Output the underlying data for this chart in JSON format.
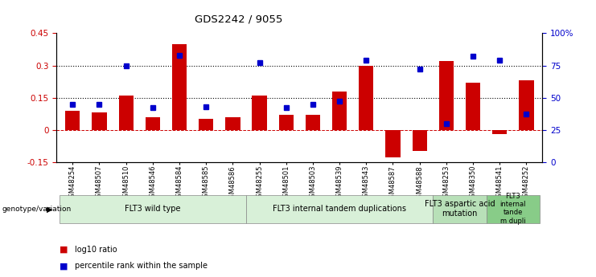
{
  "title": "GDS2242 / 9055",
  "samples": [
    "GSM48254",
    "GSM48507",
    "GSM48510",
    "GSM48546",
    "GSM48584",
    "GSM48585",
    "GSM48586",
    "GSM48255",
    "GSM48501",
    "GSM48503",
    "GSM48539",
    "GSM48543",
    "GSM48587",
    "GSM48588",
    "GSM48253",
    "GSM48350",
    "GSM48541",
    "GSM48252"
  ],
  "log10_ratio": [
    0.09,
    0.08,
    0.16,
    0.06,
    0.4,
    0.05,
    0.06,
    0.16,
    0.07,
    0.07,
    0.18,
    0.3,
    -0.13,
    -0.1,
    0.32,
    0.22,
    -0.02,
    0.23
  ],
  "percentile_rank": [
    45,
    45,
    75,
    42,
    83,
    43,
    null,
    77,
    42,
    45,
    47,
    79,
    null,
    72,
    30,
    82,
    79,
    37
  ],
  "bar_color": "#cc0000",
  "dot_color": "#0000cc",
  "ylim_left": [
    -0.15,
    0.45
  ],
  "ylim_right": [
    0,
    100
  ],
  "yticks_left": [
    -0.15,
    0.0,
    0.15,
    0.3,
    0.45
  ],
  "ytick_labels_left": [
    "-0.15",
    "0",
    "0.15",
    "0.3",
    "0.45"
  ],
  "yticks_right": [
    0,
    25,
    50,
    75,
    100
  ],
  "ytick_labels_right": [
    "0",
    "25",
    "50",
    "75",
    "100%"
  ],
  "hlines": [
    0.15,
    0.3
  ],
  "zero_line_color": "#cc0000",
  "groups": [
    {
      "label": "FLT3 wild type",
      "start": 0,
      "end": 6,
      "color": "#d8f0d8"
    },
    {
      "label": "FLT3 internal tandem duplications",
      "start": 7,
      "end": 13,
      "color": "#d8f0d8"
    },
    {
      "label": "FLT3 aspartic acid\nmutation",
      "start": 14,
      "end": 15,
      "color": "#b8e0b8"
    },
    {
      "label": "FLT3\ninternal\ntande\nm dupli",
      "start": 16,
      "end": 17,
      "color": "#88cc88"
    }
  ],
  "legend_items": [
    {
      "color": "#cc0000",
      "label": "log10 ratio"
    },
    {
      "color": "#0000cc",
      "label": "percentile rank within the sample"
    }
  ]
}
